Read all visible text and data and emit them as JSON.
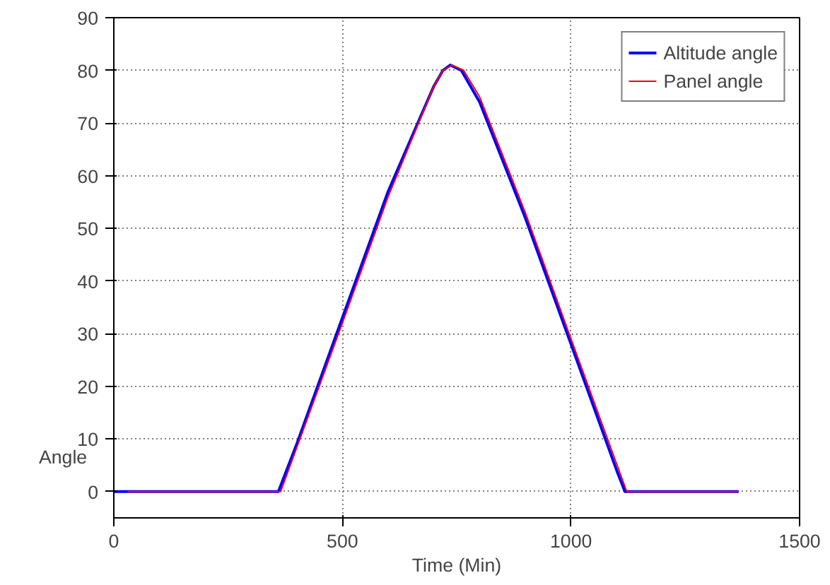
{
  "chart_data": {
    "type": "line",
    "xlabel": "Time (Min)",
    "ylabel": "Angle",
    "xlim": [
      0,
      1500
    ],
    "ylim": [
      -5,
      90
    ],
    "xticks": [
      0,
      500,
      1000,
      1500
    ],
    "yticks": [
      0,
      10,
      20,
      30,
      40,
      50,
      60,
      70,
      80,
      90
    ],
    "grid": true,
    "legend": "top right",
    "line_style": "solid",
    "series": [
      {
        "name": "Altitude angle",
        "color": "#0000ff",
        "x": [
          0,
          360,
          400,
          500,
          600,
          700,
          720,
          736,
          760,
          800,
          900,
          1000,
          1100,
          1118,
          1367
        ],
        "values": [
          0,
          0,
          9,
          33,
          57,
          77,
          80,
          81,
          80,
          74,
          52,
          28,
          4,
          0,
          0
        ]
      },
      {
        "name": "Panel angle",
        "color": "#ff0000",
        "x": [
          30,
          365,
          500,
          600,
          700,
          720,
          740,
          765,
          800,
          900,
          1000,
          1122,
          1367
        ],
        "values": [
          0,
          0,
          32,
          56,
          77,
          80,
          81,
          80,
          75,
          53,
          29,
          0,
          0
        ]
      }
    ]
  }
}
